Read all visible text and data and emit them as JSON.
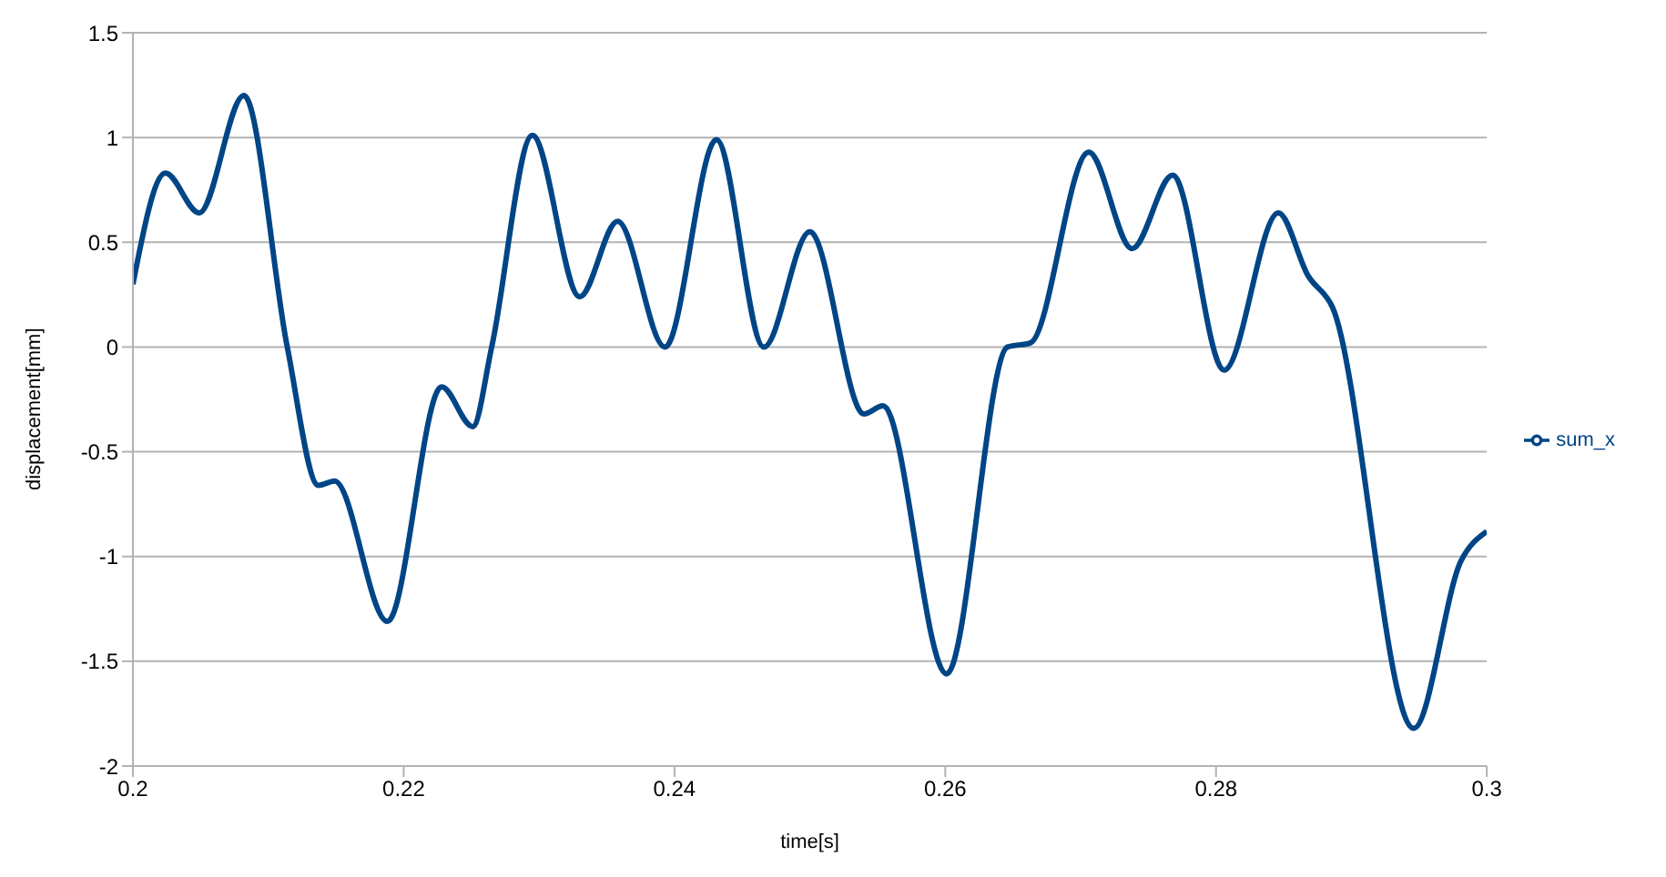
{
  "chart_data": {
    "type": "line",
    "xlabel": "time[s]",
    "ylabel": "displacement[mm]",
    "xlim": [
      0.2,
      0.3
    ],
    "xticks": [
      0.2,
      0.22,
      0.24,
      0.26,
      0.28,
      0.3
    ],
    "ylim": [
      -2,
      1.5
    ],
    "yticks": [
      -2,
      -1.5,
      -1,
      -0.5,
      0,
      0.5,
      1,
      1.5
    ],
    "grid": "y",
    "legend": "right",
    "marker": "none",
    "line_style": "solid",
    "series": [
      {
        "name": "sum_x",
        "color": "#004586",
        "x": [
          0.2,
          0.2024,
          0.2049,
          0.2082,
          0.2114,
          0.2137,
          0.2149,
          0.2188,
          0.2228,
          0.2251,
          0.2265,
          0.2295,
          0.233,
          0.2358,
          0.2393,
          0.2431,
          0.2466,
          0.25,
          0.254,
          0.2554,
          0.2601,
          0.2646,
          0.2663,
          0.2706,
          0.2738,
          0.2768,
          0.2806,
          0.2846,
          0.2868,
          0.2886,
          0.2946,
          0.2981,
          0.3
        ],
        "values": [
          0.3,
          0.83,
          0.64,
          1.2,
          0,
          -0.66,
          -0.64,
          -1.31,
          -0.19,
          -0.38,
          0,
          1.01,
          0.24,
          0.6,
          0,
          0.99,
          0,
          0.55,
          -0.32,
          -0.28,
          -1.56,
          0,
          0.02,
          0.93,
          0.47,
          0.82,
          -0.11,
          0.64,
          0.34,
          0.19,
          -1.82,
          -1.02,
          -0.88
        ]
      }
    ]
  }
}
